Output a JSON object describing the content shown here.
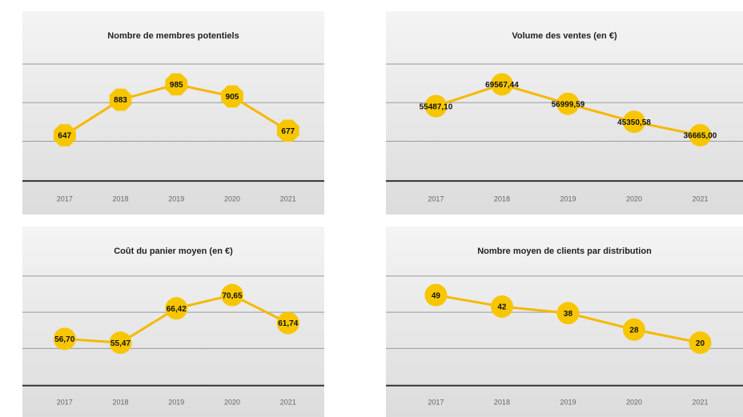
{
  "chart_data": [
    {
      "type": "line",
      "title": "Nombre de membres potentiels",
      "categories": [
        "2017",
        "2018",
        "2019",
        "2020",
        "2021"
      ],
      "values": [
        647,
        883,
        985,
        905,
        677
      ],
      "value_labels": [
        "647",
        "883",
        "985",
        "905",
        "677"
      ],
      "color": "#f5b800",
      "marker": "octagon"
    },
    {
      "type": "line",
      "title": "Volume des ventes (en €)",
      "categories": [
        "2017",
        "2018",
        "2019",
        "2020",
        "2021"
      ],
      "values": [
        55487.1,
        69567.44,
        56999.59,
        45350.58,
        36665.0
      ],
      "value_labels": [
        "55487,10",
        "69567,44",
        "56999,59",
        "45350,58",
        "36665,00"
      ],
      "color": "#f5b800",
      "marker": "circle"
    },
    {
      "type": "line",
      "title": "Coût du panier moyen (en €)",
      "categories": [
        "2017",
        "2018",
        "2019",
        "2020",
        "2021"
      ],
      "values": [
        56.7,
        55.47,
        66.42,
        70.65,
        61.74
      ],
      "value_labels": [
        "56,70",
        "55,47",
        "66,42",
        "70,65",
        "61,74"
      ],
      "color": "#f5b800",
      "marker": "circle"
    },
    {
      "type": "line",
      "title": "Nombre moyen de clients par distribution",
      "categories": [
        "2017",
        "2018",
        "2019",
        "2020",
        "2021"
      ],
      "values": [
        49,
        42,
        38,
        28,
        20
      ],
      "value_labels": [
        "49",
        "42",
        "38",
        "28",
        "20"
      ],
      "color": "#f5b800",
      "marker": "circle"
    }
  ]
}
